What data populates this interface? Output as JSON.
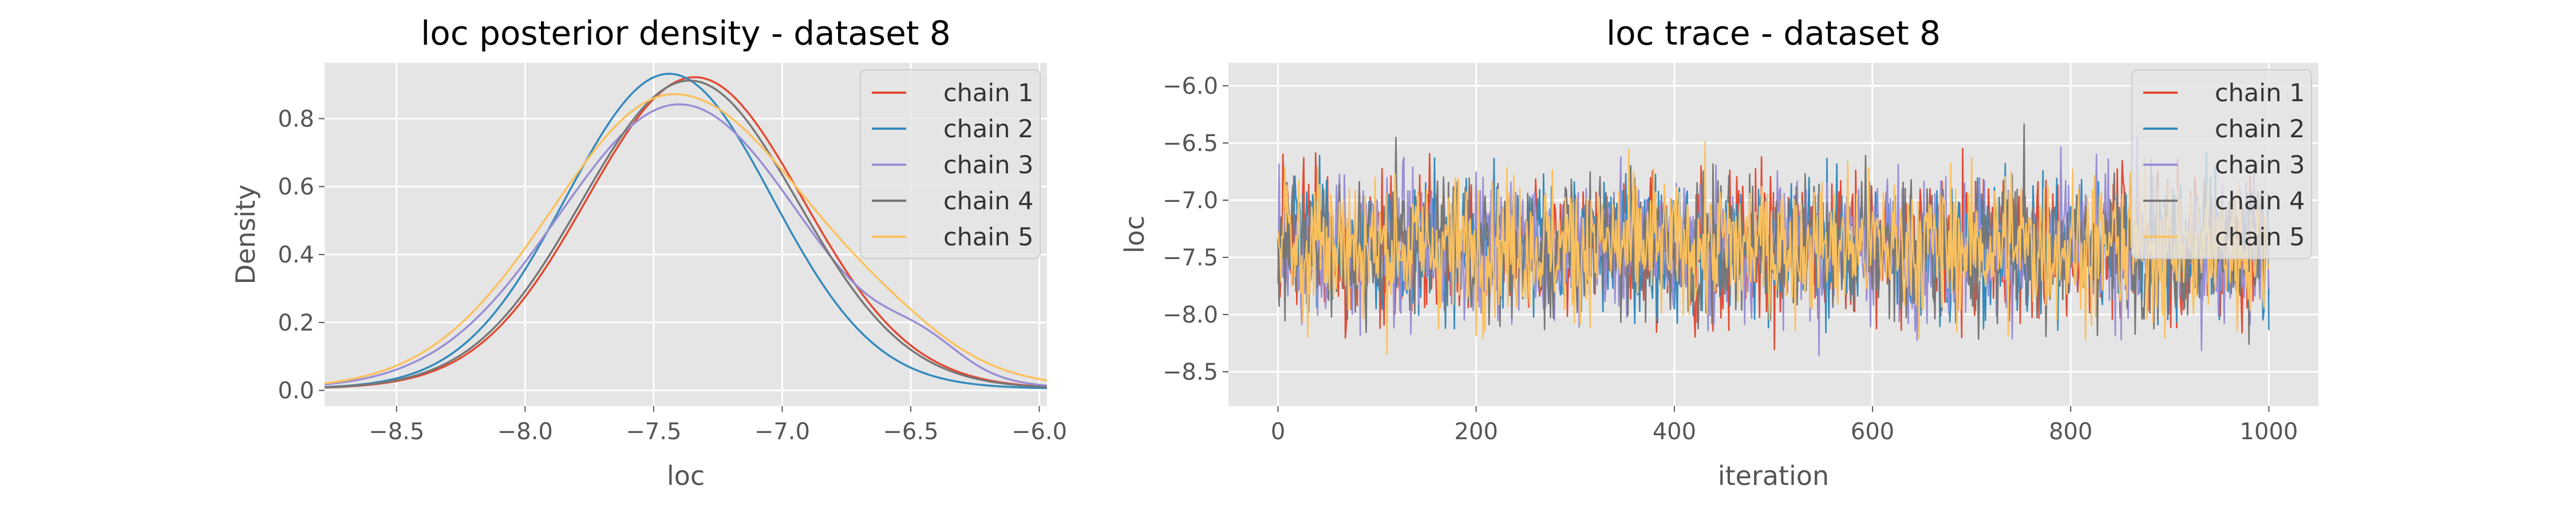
{
  "chart_data": [
    {
      "type": "line",
      "title": "loc posterior density - dataset 8",
      "xlabel": "loc",
      "ylabel": "Density",
      "xlim": [
        -8.78,
        -5.97
      ],
      "ylim": [
        -0.046,
        0.964
      ],
      "xticks": [
        -8.5,
        -8.0,
        -7.5,
        -7.0,
        -6.5,
        -6.0
      ],
      "xtick_labels": [
        "−8.5",
        "−8.0",
        "−7.5",
        "−7.0",
        "−6.5",
        "−6.0"
      ],
      "yticks": [
        0.0,
        0.2,
        0.4,
        0.6,
        0.8
      ],
      "ytick_labels": [
        "0.0",
        "0.2",
        "0.4",
        "0.6",
        "0.8"
      ],
      "grid": true,
      "legend_position": "top-right",
      "series": [
        {
          "name": "chain 1",
          "color": "#E24A33",
          "mean": -7.34,
          "sd": 0.42,
          "peak": 0.91,
          "skew": 0.0,
          "bump": [
            0.0,
            0.0,
            0.2
          ]
        },
        {
          "name": "chain 2",
          "color": "#348ABD",
          "mean": -7.44,
          "sd": 0.4,
          "peak": 0.92,
          "skew": 0.0,
          "bump": [
            0.0,
            0.0,
            0.2
          ]
        },
        {
          "name": "chain 3",
          "color": "#988ED5",
          "mean": -7.4,
          "sd": 0.47,
          "peak": 0.83,
          "skew": 0.0,
          "bump": [
            0.07,
            -6.45,
            0.15
          ]
        },
        {
          "name": "chain 4",
          "color": "#777777",
          "mean": -7.36,
          "sd": 0.42,
          "peak": 0.9,
          "skew": 0.0,
          "bump": [
            0.0,
            0.0,
            0.2
          ]
        },
        {
          "name": "chain 5",
          "color": "#FBC15E",
          "mean": -7.42,
          "sd": 0.49,
          "peak": 0.86,
          "skew": 0.1,
          "bump": [
            0.03,
            -6.55,
            0.2
          ]
        }
      ]
    },
    {
      "type": "line",
      "title": "loc trace - dataset 8",
      "xlabel": "iteration",
      "ylabel": "loc",
      "xlim": [
        -50,
        1050
      ],
      "ylim": [
        -8.8,
        -5.8
      ],
      "xticks": [
        0,
        200,
        400,
        600,
        800,
        1000
      ],
      "xtick_labels": [
        "0",
        "200",
        "400",
        "600",
        "800",
        "1000"
      ],
      "yticks": [
        -8.5,
        -8.0,
        -7.5,
        -7.0,
        -6.5,
        -6.0
      ],
      "ytick_labels": [
        "−8.5",
        "−8.0",
        "−7.5",
        "−7.0",
        "−6.5",
        "−6.0"
      ],
      "grid": true,
      "legend_position": "top-right",
      "n_iterations": 1001,
      "trace_center": -7.4,
      "trace_spread": 0.42,
      "trace_min": -8.7,
      "trace_max": -5.9,
      "series": [
        {
          "name": "chain 1",
          "color": "#E24A33"
        },
        {
          "name": "chain 2",
          "color": "#348ABD"
        },
        {
          "name": "chain 3",
          "color": "#988ED5"
        },
        {
          "name": "chain 4",
          "color": "#777777"
        },
        {
          "name": "chain 5",
          "color": "#FBC15E"
        }
      ]
    }
  ]
}
